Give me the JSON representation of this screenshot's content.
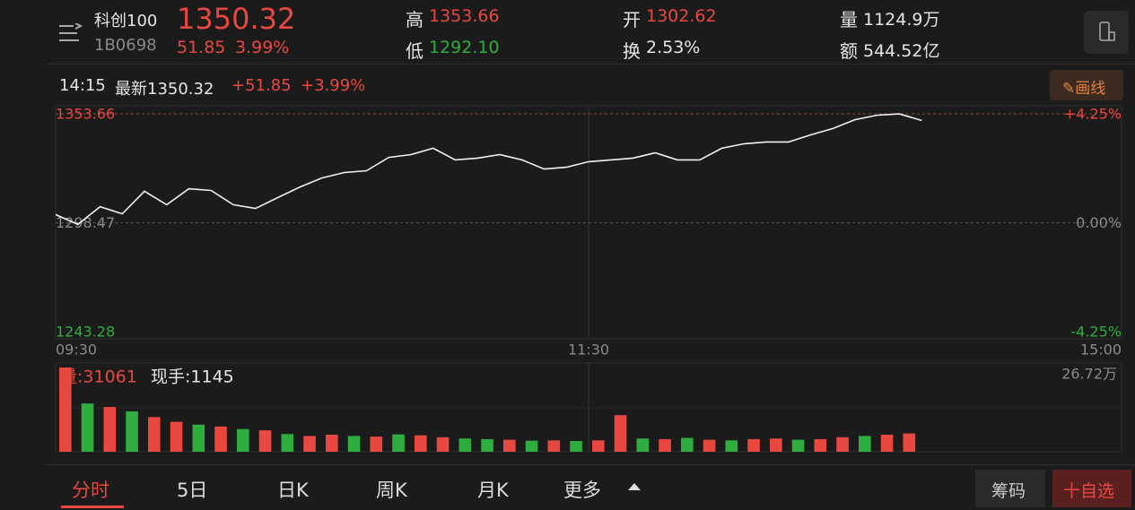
{
  "header": {
    "name": "科创100",
    "code": "1B0698",
    "price": "1350.32",
    "change": "51.85",
    "change_pct": "3.99%",
    "high_label": "高",
    "high": "1353.66",
    "low_label": "低",
    "low": "1292.10",
    "open_label": "开",
    "open": "1302.62",
    "turnover_label": "换",
    "turnover": "2.53%",
    "volume_label": "量",
    "volume": "1124.9万",
    "amount_label": "额",
    "amount": "544.52亿"
  },
  "info": {
    "time": "14:15",
    "latest": "最新1350.32",
    "change": "+51.85",
    "change_pct": "+3.99%",
    "draw_button": "画线"
  },
  "price_chart": {
    "type": "line",
    "color": "#f2f2f2",
    "values": [
      1302.62,
      1297.6,
      1306.6,
      1303.0,
      1314.4,
      1307.6,
      1315.7,
      1314.8,
      1307.6,
      1305.7,
      1311.2,
      1316.6,
      1321.2,
      1323.9,
      1324.8,
      1331.6,
      1333.0,
      1336.2,
      1330.3,
      1331.2,
      1333.0,
      1330.3,
      1325.7,
      1326.6,
      1329.4,
      1330.3,
      1331.2,
      1333.9,
      1330.3,
      1330.3,
      1336.2,
      1338.5,
      1339.4,
      1339.4,
      1343.0,
      1346.2,
      1350.7,
      1353.0,
      1353.6,
      1350.32,
      null,
      null,
      null,
      null,
      null,
      null,
      null,
      null,
      null
    ],
    "ylim": [
      1243.28,
      1353.66
    ],
    "yticks": [
      1353.66,
      1298.47,
      1243.28
    ],
    "ytick_colors": [
      "#e8483f",
      "#8a8a8a",
      "#2fae3f"
    ],
    "y2lim": [
      -4.25,
      4.25
    ],
    "y2ticks": [
      {
        "value": 4.25,
        "label": "+4.25%"
      },
      {
        "value": 0,
        "label": "0.00%"
      },
      {
        "value": -4.25,
        "label": "-4.25%"
      }
    ],
    "xticks": [
      "09:30",
      "11:30",
      "15:00"
    ]
  },
  "volume_chart": {
    "type": "bar",
    "current_volume": "量:31061",
    "current_hand": "现手:1145",
    "values": [
      26.72,
      15.3,
      14.2,
      12.8,
      11.0,
      9.5,
      8.6,
      8.0,
      7.2,
      6.8,
      5.6,
      5.0,
      5.4,
      5.0,
      4.8,
      5.5,
      5.2,
      4.6,
      4.2,
      4.0,
      3.8,
      3.5,
      3.6,
      3.4,
      3.6,
      11.6,
      4.2,
      4.0,
      4.4,
      3.8,
      3.6,
      4.0,
      4.2,
      3.8,
      4.0,
      4.6,
      5.0,
      5.4,
      5.8
    ],
    "colors": [
      "#e8483f",
      "#2fae3f",
      "#e8483f",
      "#2fae3f",
      "#e8483f",
      "#e8483f",
      "#2fae3f",
      "#e8483f",
      "#2fae3f",
      "#e8483f",
      "#2fae3f",
      "#e8483f",
      "#e8483f",
      "#2fae3f",
      "#e8483f",
      "#2fae3f",
      "#e8483f",
      "#e8483f",
      "#2fae3f",
      "#2fae3f",
      "#e8483f",
      "#2fae3f",
      "#e8483f",
      "#2fae3f",
      "#e8483f",
      "#e8483f",
      "#2fae3f",
      "#e8483f",
      "#2fae3f",
      "#e8483f",
      "#2fae3f",
      "#e8483f",
      "#e8483f",
      "#2fae3f",
      "#e8483f",
      "#e8483f",
      "#2fae3f",
      "#e8483f",
      "#e8483f"
    ],
    "ylim": [
      0,
      26.72
    ],
    "yticks": [
      {
        "value": 26.72,
        "label": "26.72万"
      }
    ]
  },
  "tabs": [
    "分时",
    "5日",
    "日K",
    "周K",
    "月K",
    "更多"
  ],
  "buttons": {
    "chips": "筹码",
    "add": "十自选"
  }
}
